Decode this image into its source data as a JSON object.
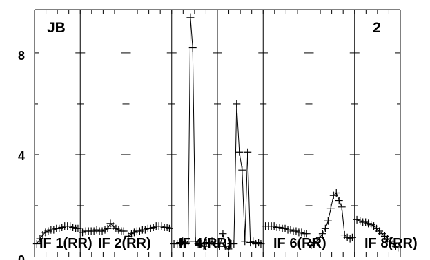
{
  "chart_data": {
    "type": "line",
    "marker": "plus",
    "line_color": "#000000",
    "background": "#ffffff",
    "corner_labels": {
      "left": "JB",
      "right": "2"
    },
    "y_tick_labels": [
      "0",
      "4",
      "8"
    ],
    "ylim": [
      0,
      9.7
    ],
    "panel_labels": [
      "IF 1(RR)",
      "IF 2(RR)",
      "IF 4(RR)",
      "IF 6(RR)",
      "IF 8(RR)"
    ],
    "panels": [
      {
        "x": [
          0.05,
          0.12,
          0.18,
          0.24,
          0.3,
          0.36,
          0.42,
          0.48,
          0.54,
          0.6,
          0.66,
          0.72,
          0.78,
          0.84,
          0.9,
          0.95
        ],
        "y": [
          0.5,
          0.7,
          0.85,
          0.95,
          1.0,
          1.05,
          1.05,
          1.1,
          1.1,
          1.15,
          1.2,
          1.2,
          1.2,
          1.15,
          1.1,
          1.1
        ]
      },
      {
        "x": [
          0.05,
          0.12,
          0.18,
          0.24,
          0.3,
          0.36,
          0.42,
          0.48,
          0.54,
          0.6,
          0.66,
          0.72,
          0.78,
          0.84,
          0.9,
          0.95
        ],
        "y": [
          0.95,
          1.0,
          1.0,
          1.0,
          1.0,
          1.05,
          1.0,
          1.0,
          1.05,
          1.1,
          1.3,
          1.2,
          1.1,
          1.05,
          1.0,
          1.0
        ]
      },
      {
        "x": [
          0.05,
          0.12,
          0.18,
          0.24,
          0.3,
          0.36,
          0.42,
          0.48,
          0.54,
          0.6,
          0.66,
          0.72,
          0.78,
          0.84,
          0.9,
          0.95
        ],
        "y": [
          0.8,
          0.9,
          0.95,
          1.0,
          1.0,
          1.05,
          1.05,
          1.1,
          1.1,
          1.15,
          1.2,
          1.2,
          1.2,
          1.15,
          1.15,
          1.1
        ]
      },
      {
        "x": [
          0.05,
          0.12,
          0.18,
          0.24,
          0.3,
          0.36,
          0.41,
          0.46,
          0.52,
          0.58,
          0.64,
          0.7,
          0.76,
          0.82,
          0.88,
          0.95
        ],
        "y": [
          0.5,
          0.5,
          0.55,
          0.6,
          0.5,
          0.6,
          9.4,
          8.2,
          0.6,
          0.5,
          0.5,
          0.4,
          0.55,
          0.5,
          0.6,
          0.5
        ]
      },
      {
        "x": [
          0.05,
          0.12,
          0.18,
          0.24,
          0.3,
          0.36,
          0.42,
          0.48,
          0.54,
          0.6,
          0.66,
          0.72,
          0.78,
          0.84,
          0.9,
          0.95
        ],
        "y": [
          0.4,
          0.9,
          0.4,
          0.3,
          0.5,
          0.5,
          6.0,
          4.1,
          3.4,
          0.6,
          4.1,
          0.55,
          0.6,
          0.5,
          0.55,
          0.5
        ]
      },
      {
        "x": [
          0.05,
          0.12,
          0.18,
          0.24,
          0.3,
          0.36,
          0.42,
          0.48,
          0.54,
          0.6,
          0.66,
          0.72,
          0.78,
          0.84,
          0.9,
          0.95
        ],
        "y": [
          1.2,
          1.2,
          1.2,
          1.2,
          1.15,
          1.15,
          1.1,
          1.1,
          1.05,
          1.05,
          1.0,
          1.0,
          0.95,
          0.95,
          0.9,
          0.9
        ]
      },
      {
        "x": [
          0.05,
          0.12,
          0.18,
          0.24,
          0.3,
          0.36,
          0.42,
          0.48,
          0.54,
          0.6,
          0.66,
          0.72,
          0.78,
          0.84,
          0.9,
          0.95
        ],
        "y": [
          0.45,
          0.55,
          0.6,
          0.75,
          0.9,
          1.1,
          1.4,
          1.9,
          2.4,
          2.5,
          2.2,
          1.95,
          0.85,
          0.75,
          0.7,
          0.75
        ]
      },
      {
        "x": [
          0.05,
          0.12,
          0.18,
          0.24,
          0.3,
          0.36,
          0.42,
          0.48,
          0.54,
          0.6,
          0.66,
          0.72,
          0.78,
          0.84,
          0.9,
          0.95
        ],
        "y": [
          1.45,
          1.4,
          1.35,
          1.35,
          1.3,
          1.25,
          1.2,
          1.1,
          1.0,
          0.9,
          0.8,
          0.7,
          0.6,
          0.5,
          0.4,
          0.35
        ]
      }
    ]
  }
}
